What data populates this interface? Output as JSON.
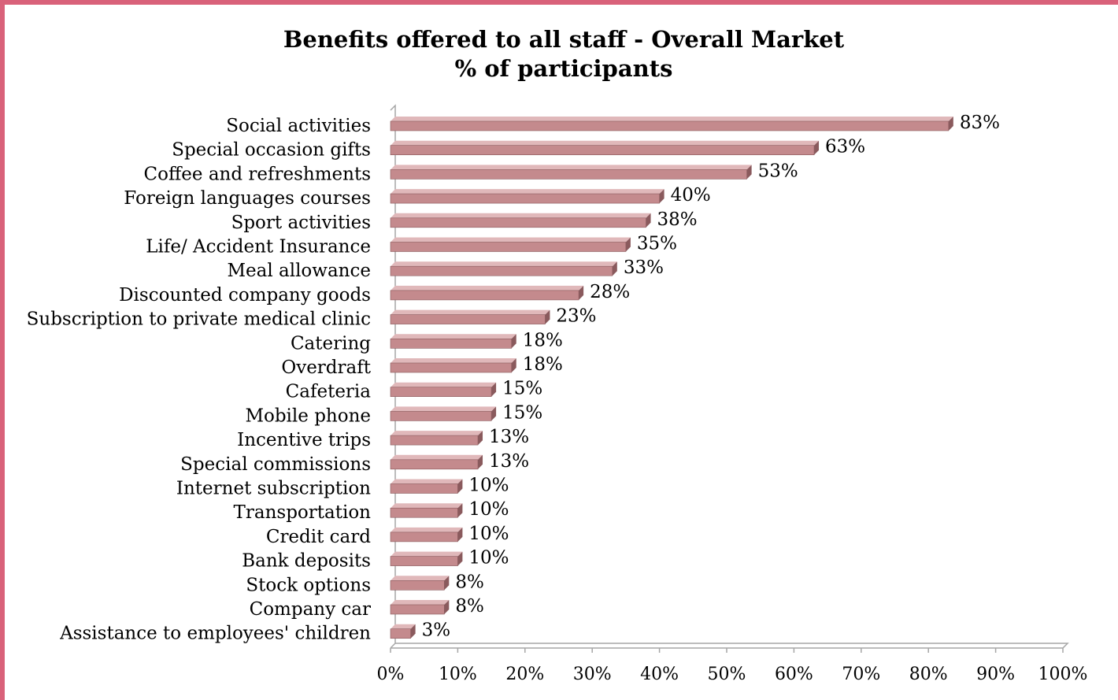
{
  "chart_data": {
    "type": "bar",
    "orientation": "horizontal",
    "title": "Benefits offered to all staff - Overall Market",
    "subtitle": "% of participants",
    "categories": [
      "Social activities",
      "Special occasion gifts",
      "Coffee and refreshments",
      "Foreign languages courses",
      "Sport activities",
      "Life/ Accident Insurance",
      "Meal allowance",
      "Discounted company goods",
      "Subscription to private medical clinic",
      "Catering",
      "Overdraft",
      "Cafeteria",
      "Mobile phone",
      "Incentive trips",
      "Special commissions",
      "Internet subscription",
      "Transportation",
      "Credit card",
      "Bank deposits",
      "Stock options",
      "Company car",
      "Assistance to employees' children"
    ],
    "values": [
      83,
      63,
      53,
      40,
      38,
      35,
      33,
      28,
      23,
      18,
      18,
      15,
      15,
      13,
      13,
      10,
      10,
      10,
      10,
      8,
      8,
      3
    ],
    "value_labels": [
      "83%",
      "63%",
      "53%",
      "40%",
      "38%",
      "35%",
      "33%",
      "28%",
      "23%",
      "18%",
      "18%",
      "15%",
      "15%",
      "13%",
      "13%",
      "10%",
      "10%",
      "10%",
      "10%",
      "8%",
      "8%",
      "3%"
    ],
    "xlim": [
      0,
      100
    ],
    "xticks": [
      "0%",
      "10%",
      "20%",
      "30%",
      "40%",
      "50%",
      "60%",
      "70%",
      "80%",
      "90%",
      "100%"
    ],
    "grid": false,
    "legend": "none",
    "colors": {
      "bar_front": "#c48a8d",
      "bar_top": "#e0b8ba",
      "bar_side": "#8a5a5d",
      "axis": "#a6a6a6",
      "frame": "#d9627a"
    }
  }
}
